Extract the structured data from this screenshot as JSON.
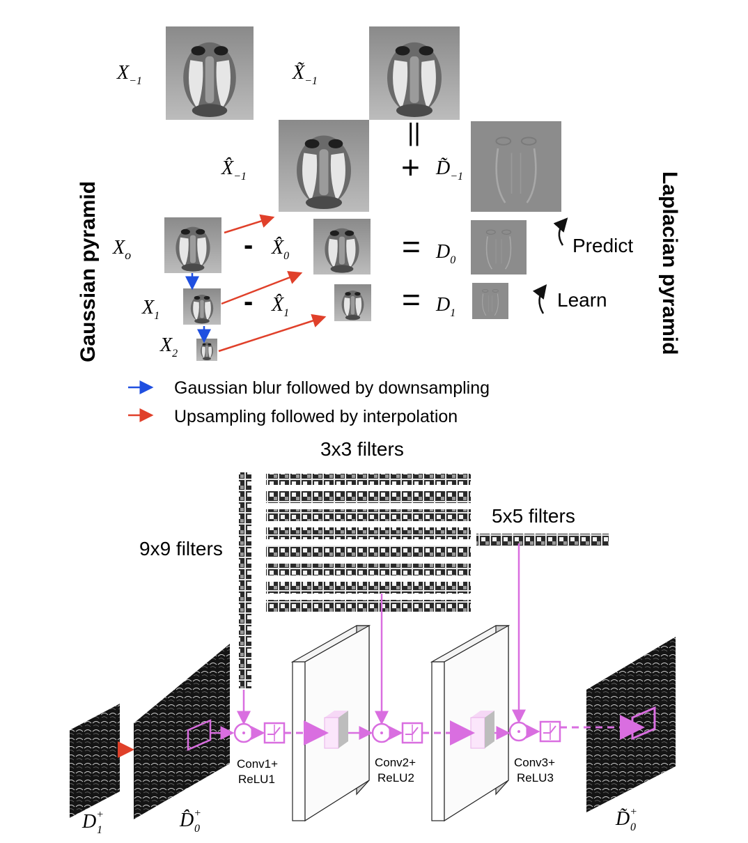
{
  "pyramid": {
    "gaussian_label": "Gaussian pyramid",
    "laplacian_label": "Laplacian pyramid",
    "symbols": {
      "x_minus1": "X",
      "x_minus1_sub": "−1",
      "xt_minus1": "X̃",
      "xt_minus1_sub": "−1",
      "xh_minus1": "X̂",
      "xh_minus1_sub": "−1",
      "x0": "X",
      "x0_sub": "o",
      "x1": "X",
      "x1_sub": "1",
      "x2": "X",
      "x2_sub": "2",
      "xh0": "X̂",
      "xh0_sub": "0",
      "xh1": "X̂",
      "xh1_sub": "1",
      "dt_minus1": "D̃",
      "dt_minus1_sub": "−1",
      "d0": "D",
      "d0_sub": "0",
      "d1": "D",
      "d1_sub": "1"
    },
    "operators": {
      "equals_vertical": "||",
      "plus": "+",
      "minus": "-",
      "equals": "="
    },
    "predict_label": "Predict",
    "learn_label": "Learn"
  },
  "legend": {
    "blue_text": "Gaussian blur followed by downsampling",
    "red_text": "Upsampling followed by interpolation",
    "blue_color": "#1f4fe0",
    "red_color": "#e0402a"
  },
  "network": {
    "filters_3x3": "3x3 filters",
    "filters_9x9": "9x9 filters",
    "filters_5x5": "5x5 filters",
    "conv1": "Conv1+",
    "relu1": "ReLU1",
    "conv2": "Conv2+",
    "relu2": "ReLU2",
    "conv3": "Conv3+",
    "relu3": "ReLU3",
    "in_d1": "D",
    "in_d1_sub": "1",
    "in_d1_sup": "+",
    "in_dh0": "D̂",
    "in_dh0_sub": "0",
    "in_dh0_sup": "+",
    "out_dt0": "D̃",
    "out_dt0_sub": "0",
    "out_dt0_sup": "+",
    "accent_color": "#d96ee0"
  }
}
